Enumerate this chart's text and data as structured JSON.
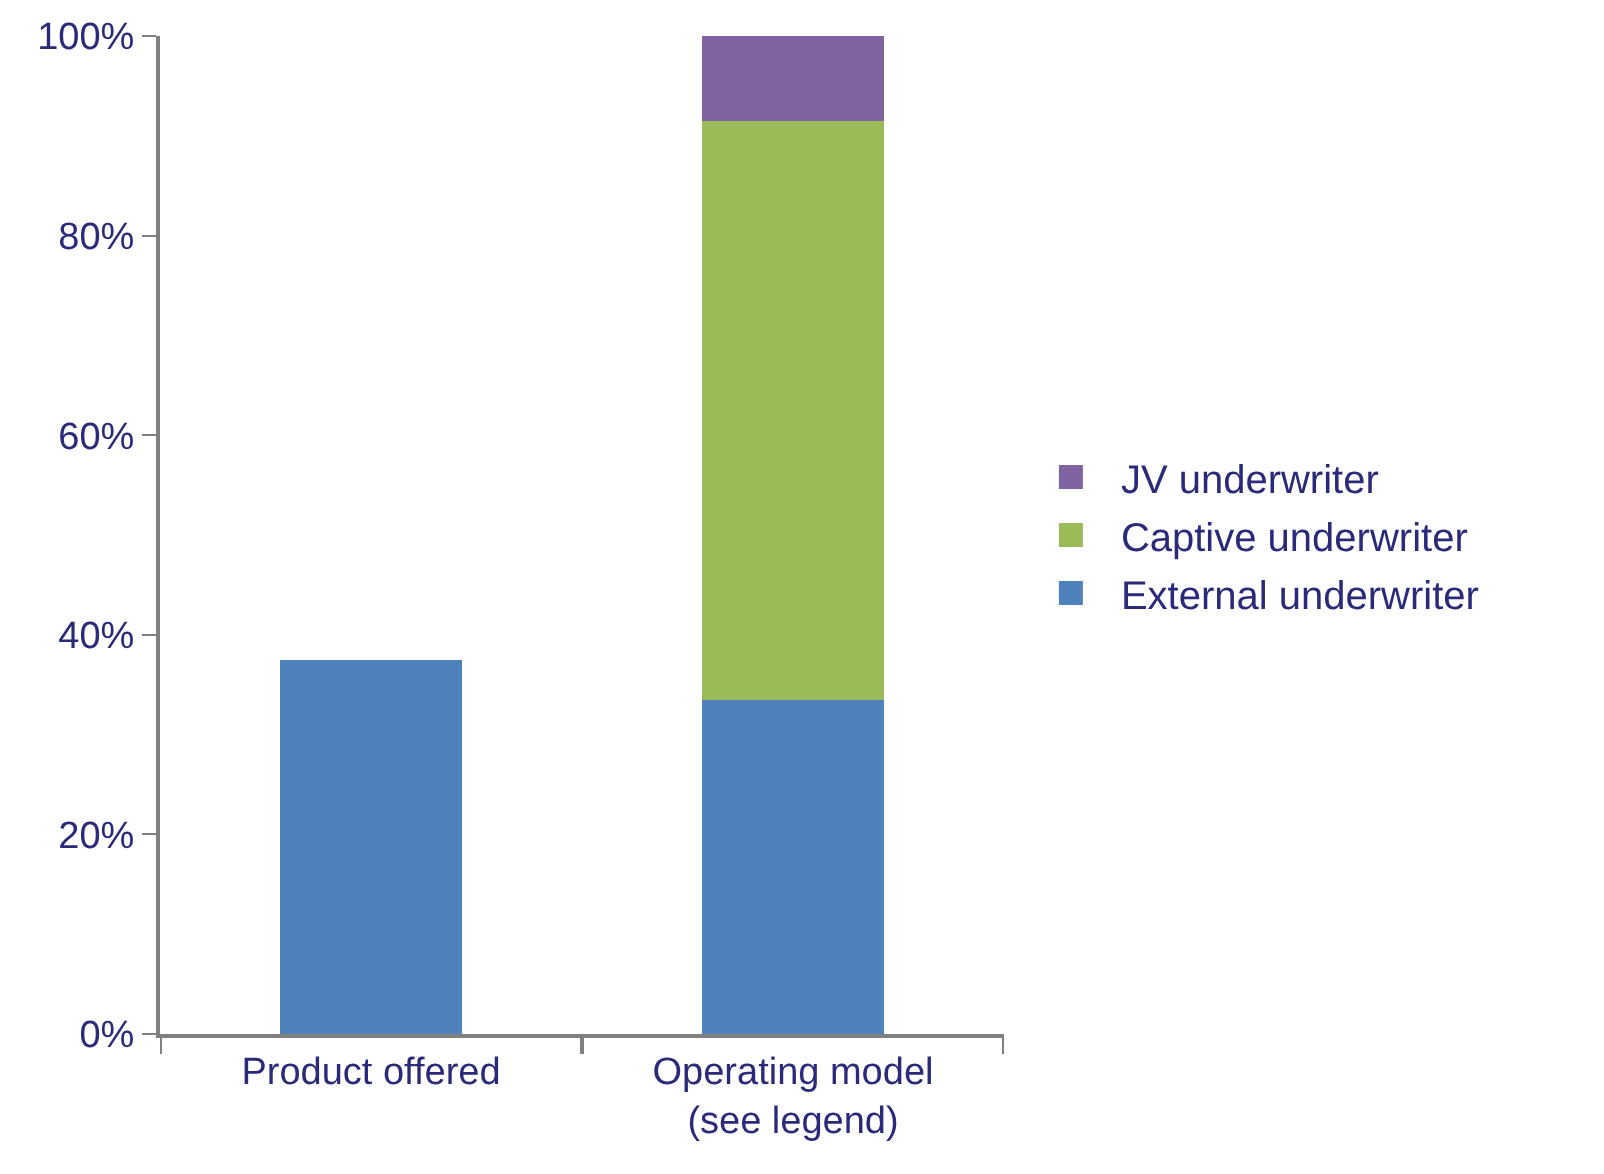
{
  "chart_data": {
    "type": "bar",
    "categories": [
      "Product offered",
      "Operating model\n(see legend)"
    ],
    "series": [
      {
        "name": "External underwriter",
        "color": "#4f81bd",
        "values": [
          37.5,
          33.5
        ]
      },
      {
        "name": "Captive underwriter",
        "color": "#9bbb59",
        "values": [
          null,
          58
        ]
      },
      {
        "name": "JV underwriter",
        "color": "#8064a2",
        "values": [
          null,
          8.5
        ]
      }
    ],
    "stacked": true,
    "ylim": [
      0,
      100
    ],
    "yticks": [
      {
        "value": 0,
        "label": "0%"
      },
      {
        "value": 20,
        "label": "20%"
      },
      {
        "value": 40,
        "label": "40%"
      },
      {
        "value": 60,
        "label": "60%"
      },
      {
        "value": 80,
        "label": "80%"
      },
      {
        "value": 100,
        "label": "100%"
      }
    ],
    "grid": false,
    "legend": "right"
  }
}
